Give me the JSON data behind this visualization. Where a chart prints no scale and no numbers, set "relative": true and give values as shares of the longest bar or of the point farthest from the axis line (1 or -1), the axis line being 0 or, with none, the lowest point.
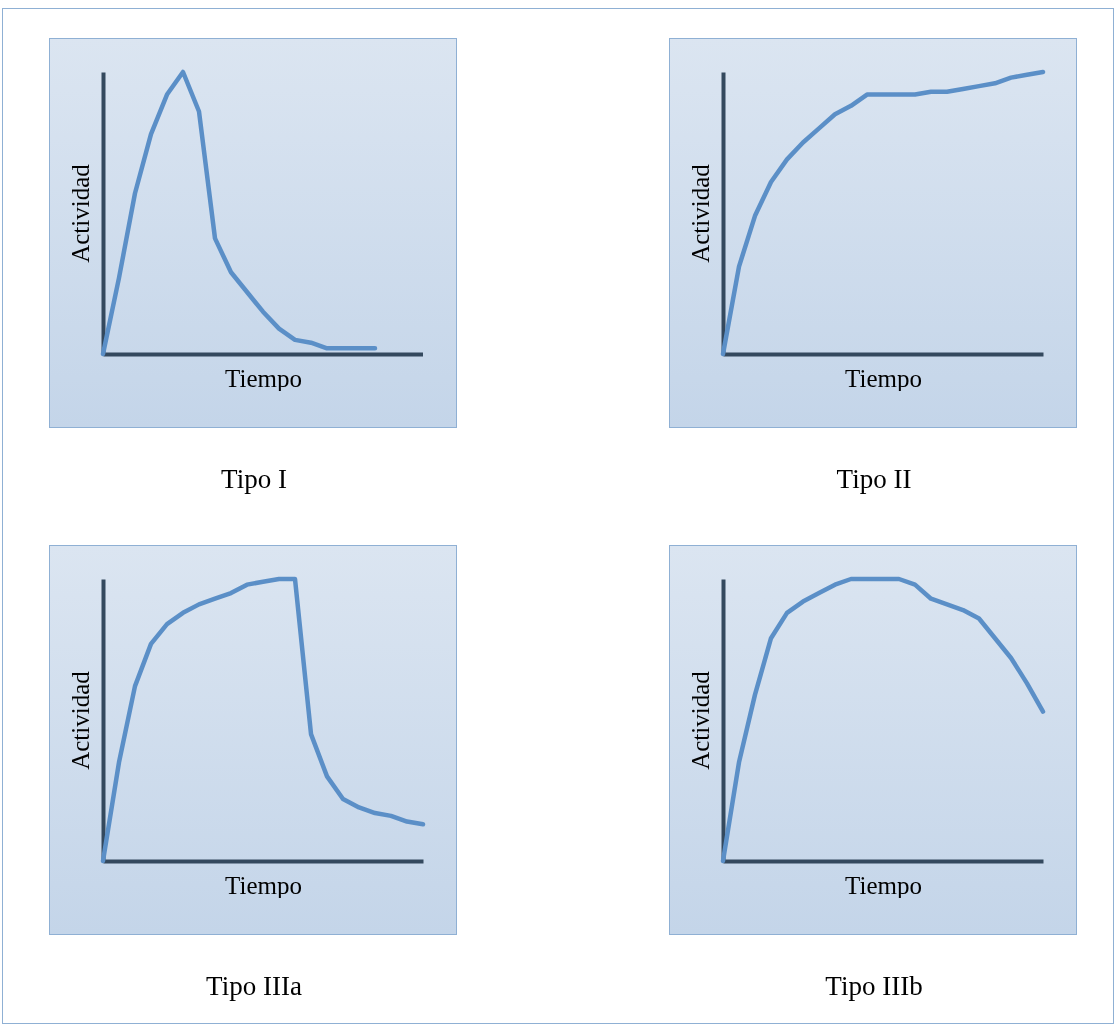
{
  "chart_data": [
    {
      "type": "line",
      "title": "Tipo I",
      "xlabel": "Tiempo",
      "ylabel": "Actividad",
      "relative": true,
      "color": "#5b8fc7",
      "categories": [
        null,
        null,
        null,
        null,
        null,
        null,
        null,
        null,
        null,
        null,
        null,
        null,
        null,
        null,
        null,
        null,
        null,
        null,
        null,
        null,
        null
      ],
      "values": [
        0,
        0.27,
        0.57,
        0.78,
        0.92,
        1,
        0.86,
        0.41,
        0.29,
        0.22,
        0.15,
        0.09,
        0.05,
        0.04,
        0.02,
        0.02,
        0.02,
        0.02,
        null,
        null,
        null
      ]
    },
    {
      "type": "line",
      "title": "Tipo II",
      "xlabel": "Tiempo",
      "ylabel": "Actividad",
      "relative": true,
      "color": "#5b8fc7",
      "categories": [
        null,
        null,
        null,
        null,
        null,
        null,
        null,
        null,
        null,
        null,
        null,
        null,
        null,
        null,
        null,
        null,
        null,
        null,
        null,
        null,
        null
      ],
      "values": [
        0,
        0.31,
        0.49,
        0.61,
        0.69,
        0.75,
        0.8,
        0.85,
        0.88,
        0.92,
        0.92,
        0.92,
        0.92,
        0.93,
        0.93,
        0.94,
        0.95,
        0.96,
        0.98,
        0.99,
        1
      ]
    },
    {
      "type": "line",
      "title": "Tipo IIIa",
      "xlabel": "Tiempo",
      "ylabel": "Actividad",
      "relative": true,
      "color": "#5b8fc7",
      "categories": [
        null,
        null,
        null,
        null,
        null,
        null,
        null,
        null,
        null,
        null,
        null,
        null,
        null,
        null,
        null,
        null,
        null,
        null,
        null,
        null,
        null
      ],
      "values": [
        0,
        0.35,
        0.62,
        0.77,
        0.84,
        0.88,
        0.91,
        0.93,
        0.95,
        0.98,
        0.99,
        1,
        1,
        0.45,
        0.3,
        0.22,
        0.19,
        0.17,
        0.16,
        0.14,
        0.13
      ]
    },
    {
      "type": "line",
      "title": "Tipo IIIb",
      "xlabel": "Tiempo",
      "ylabel": "Actividad",
      "relative": true,
      "color": "#5b8fc7",
      "categories": [
        null,
        null,
        null,
        null,
        null,
        null,
        null,
        null,
        null,
        null,
        null,
        null,
        null,
        null,
        null,
        null,
        null,
        null,
        null,
        null,
        null
      ],
      "values": [
        0,
        0.35,
        0.59,
        0.79,
        0.88,
        0.92,
        0.95,
        0.98,
        1,
        1,
        1,
        1,
        0.98,
        0.93,
        0.91,
        0.89,
        0.86,
        0.79,
        0.72,
        0.63,
        0.53
      ]
    }
  ]
}
